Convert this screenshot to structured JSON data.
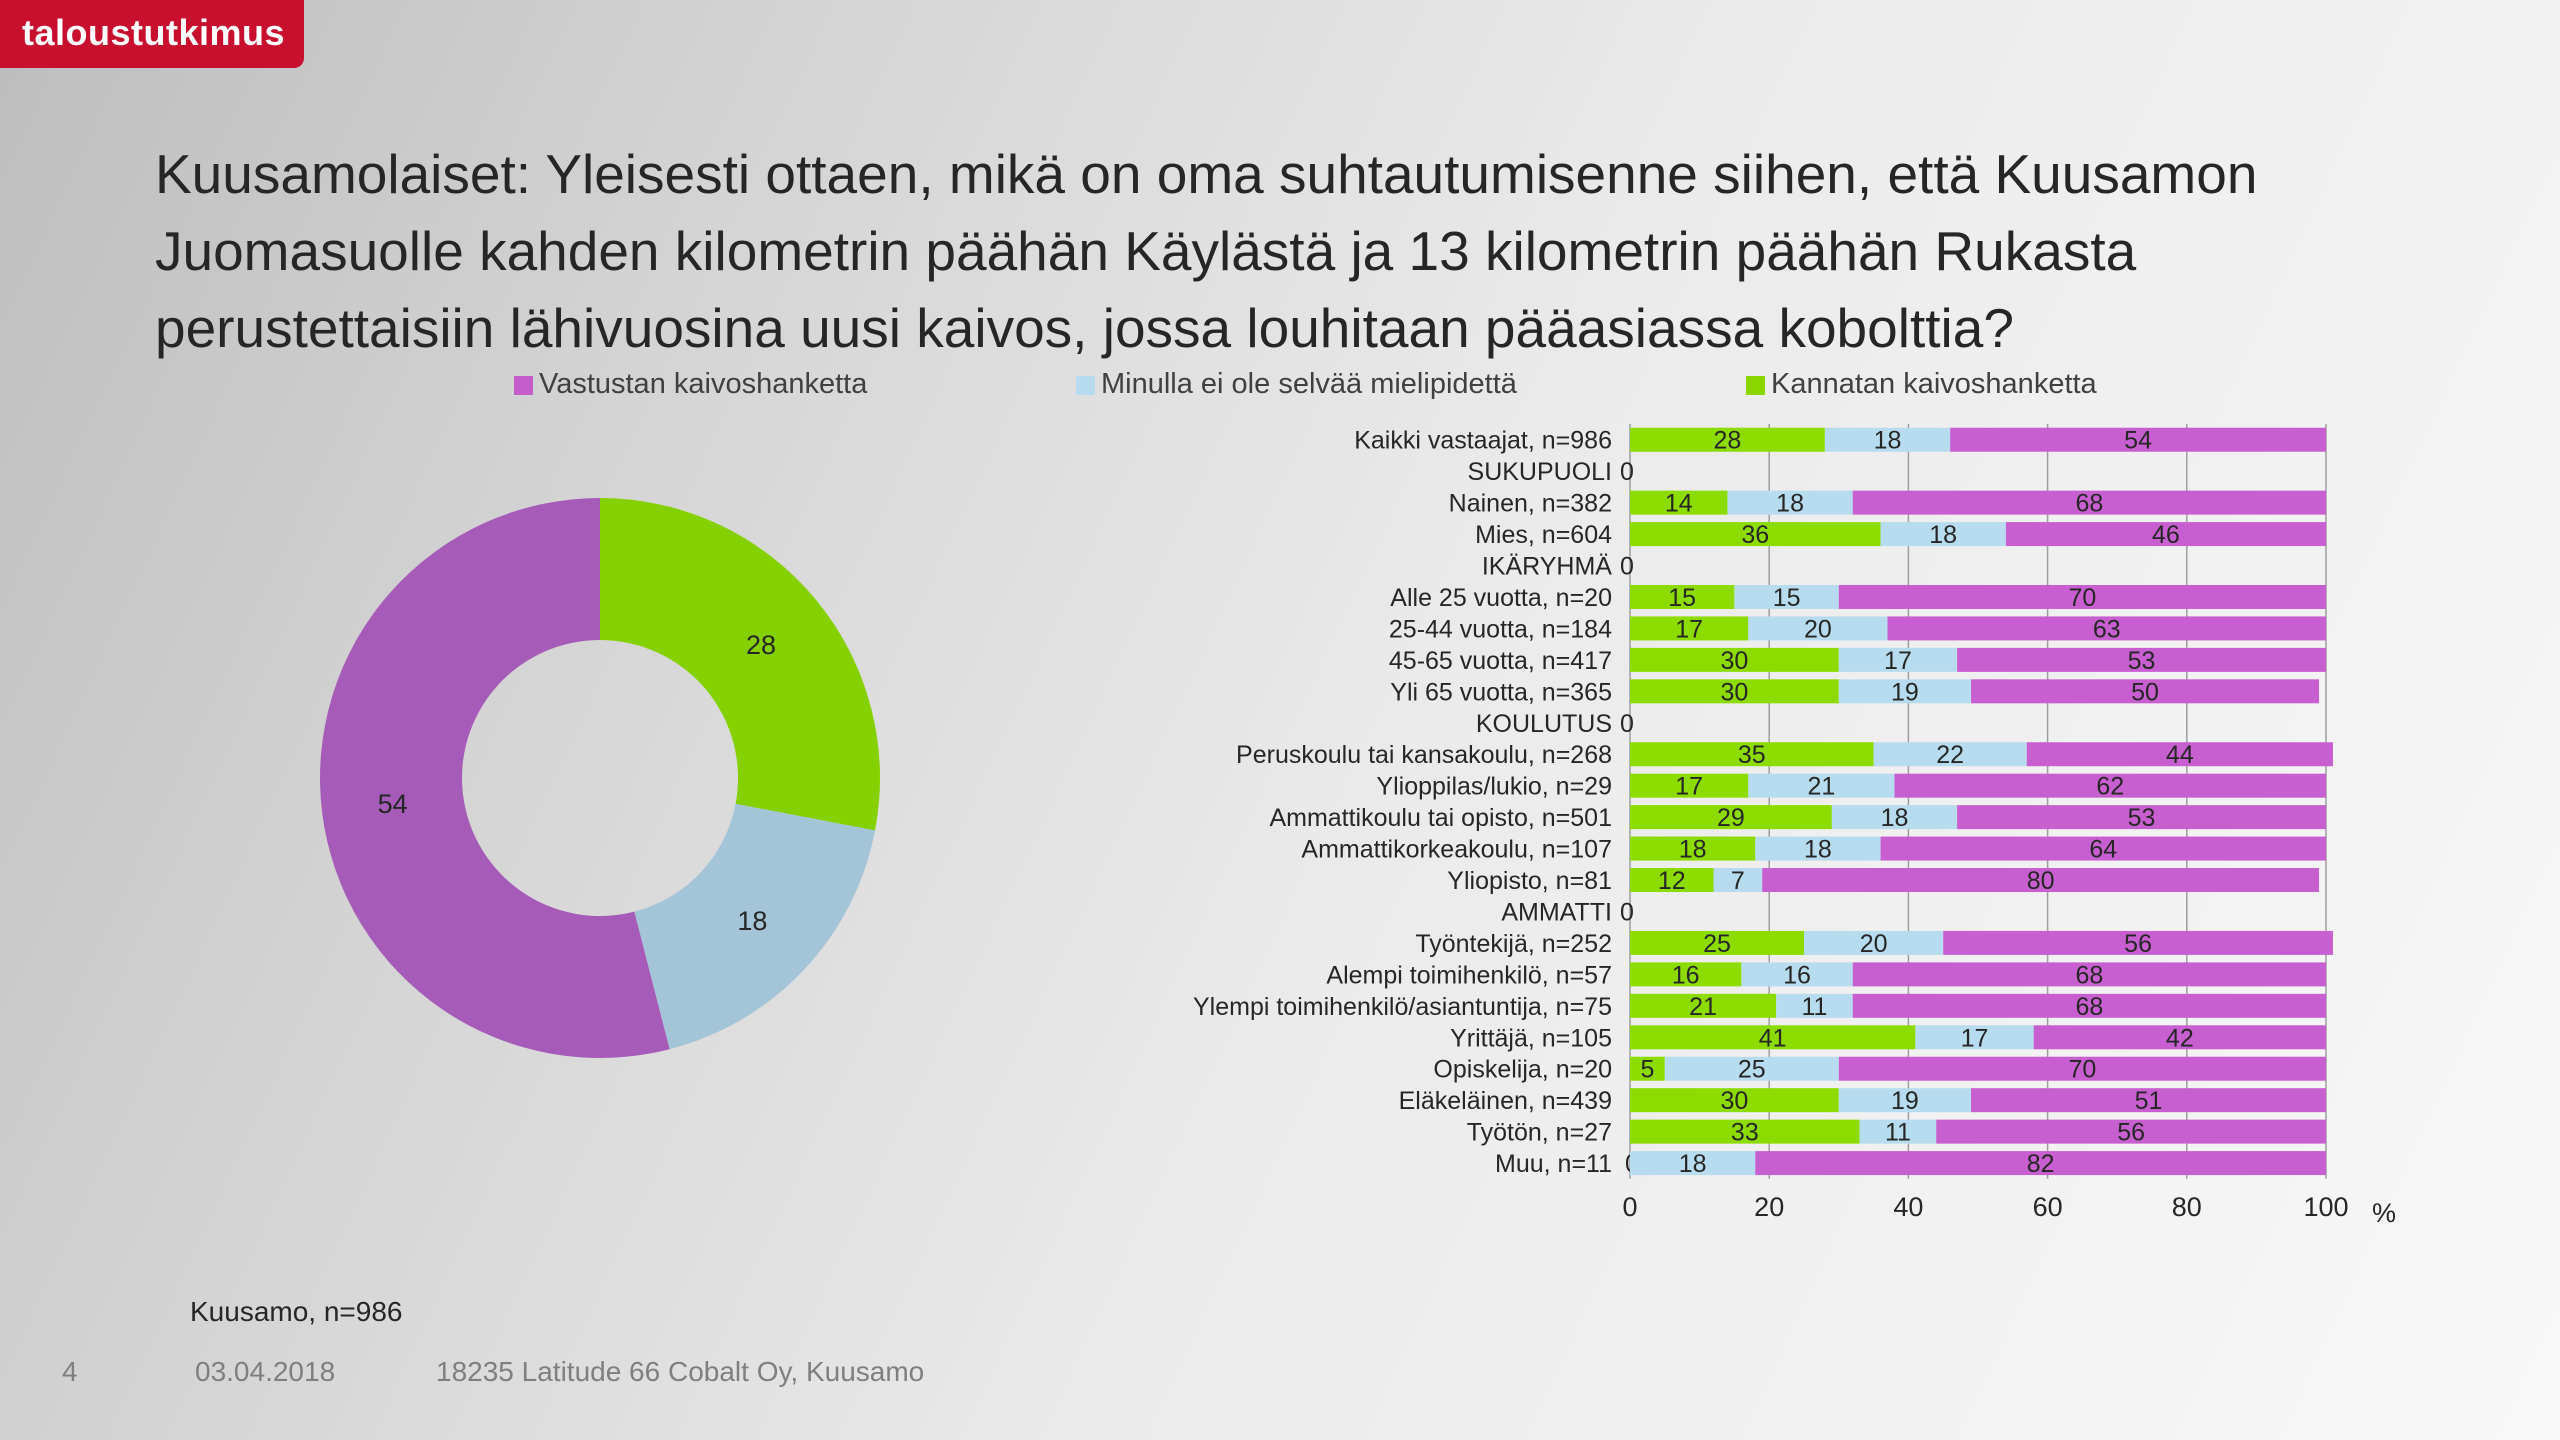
{
  "header": {
    "logo_text": "taloustutkimus",
    "title": "Kuusamolaiset: Yleisesti ottaen, mikä on oma suhtautumisenne siihen, että Kuusamon Juomasuolle kahden kilometrin päähän Käylästä ja 13 kilometrin päähän Rukasta perustettaisiin lähivuosina uusi kaivos, jossa louhitaan pääasiassa kobolttia?"
  },
  "legend": [
    {
      "label": "Vastustan kaivoshanketta",
      "color": "#c45ccc"
    },
    {
      "label": "Minulla ei ole selvää mielipidettä",
      "color": "#b7dcef"
    },
    {
      "label": "Kannatan kaivoshanketta",
      "color": "#8cd600"
    }
  ],
  "chart_data": [
    {
      "type": "pie",
      "variant": "donut",
      "slices": [
        {
          "series": "Kannatan kaivoshanketta",
          "value": 28,
          "label": "28",
          "color": "#85d100"
        },
        {
          "series": "Minulla ei ole selvää mielipidettä",
          "value": 18,
          "label": "18",
          "color": "#a4c4d8"
        },
        {
          "series": "Vastustan kaivoshanketta",
          "value": 54,
          "label": "54",
          "color": "#a65bb9"
        }
      ]
    },
    {
      "type": "bar",
      "orientation": "horizontal",
      "stacked": true,
      "xlim": [
        0,
        100
      ],
      "xticks": [
        0,
        20,
        40,
        60,
        80,
        100
      ],
      "xunit": "%",
      "grid": true,
      "colors": {
        "support": "#8cdc00",
        "neutral": "#b7dcef",
        "oppose": "#c85fd0"
      },
      "series_names": {
        "support": "Kannatan kaivoshanketta",
        "neutral": "Minulla ei ole selvää mielipidettä",
        "oppose": "Vastustan kaivoshanketta"
      },
      "rows": [
        {
          "label": "Kaikki vastaajat, n=986",
          "values": [
            28,
            18,
            54
          ]
        },
        {
          "label": "SUKUPUOLI",
          "values": [
            0,
            0,
            0
          ],
          "header": true
        },
        {
          "label": "Nainen, n=382",
          "values": [
            14,
            18,
            68
          ]
        },
        {
          "label": "Mies, n=604",
          "values": [
            36,
            18,
            46
          ]
        },
        {
          "label": "IKÄRYHMÄ",
          "values": [
            0,
            0,
            0
          ],
          "header": true
        },
        {
          "label": "Alle 25 vuotta, n=20",
          "values": [
            15,
            15,
            70
          ]
        },
        {
          "label": "25-44 vuotta, n=184",
          "values": [
            17,
            20,
            63
          ]
        },
        {
          "label": "45-65 vuotta, n=417",
          "values": [
            30,
            17,
            53
          ]
        },
        {
          "label": "Yli 65 vuotta, n=365",
          "values": [
            30,
            19,
            50
          ]
        },
        {
          "label": "KOULUTUS",
          "values": [
            0,
            0,
            0
          ],
          "header": true
        },
        {
          "label": "Peruskoulu tai kansakoulu, n=268",
          "values": [
            35,
            22,
            44
          ]
        },
        {
          "label": "Ylioppilas/lukio, n=29",
          "values": [
            17,
            21,
            62
          ]
        },
        {
          "label": "Ammattikoulu tai opisto, n=501",
          "values": [
            29,
            18,
            53
          ]
        },
        {
          "label": "Ammattikorkeakoulu, n=107",
          "values": [
            18,
            18,
            64
          ]
        },
        {
          "label": "Yliopisto, n=81",
          "values": [
            12,
            7,
            80
          ]
        },
        {
          "label": "AMMATTI",
          "values": [
            0,
            0,
            0
          ],
          "header": true
        },
        {
          "label": "Työntekijä, n=252",
          "values": [
            25,
            20,
            56
          ]
        },
        {
          "label": "Alempi toimihenkilö, n=57",
          "values": [
            16,
            16,
            68
          ]
        },
        {
          "label": "Ylempi toimihenkilö/asiantuntija, n=75",
          "values": [
            21,
            11,
            68
          ]
        },
        {
          "label": "Yrittäjä, n=105",
          "values": [
            41,
            17,
            42
          ]
        },
        {
          "label": "Opiskelija, n=20",
          "values": [
            5,
            25,
            70
          ]
        },
        {
          "label": "Eläkeläinen, n=439",
          "values": [
            30,
            19,
            51
          ]
        },
        {
          "label": "Työtön, n=27",
          "values": [
            33,
            11,
            56
          ]
        },
        {
          "label": "Muu, n=11",
          "values": [
            0,
            18,
            82
          ]
        }
      ]
    }
  ],
  "footnote": "Kuusamo, n=986",
  "footer": {
    "page_number": "4",
    "date": "03.04.2018",
    "project": "18235 Latitude 66 Cobalt Oy, Kuusamo"
  }
}
